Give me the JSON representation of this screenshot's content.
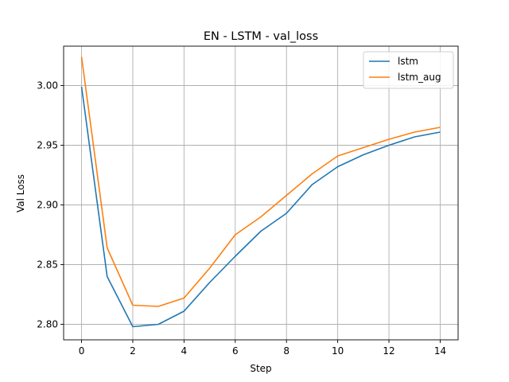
{
  "chart_data": {
    "type": "line",
    "title": "EN - LSTM - val_loss",
    "xlabel": "Step",
    "ylabel": "Val Loss",
    "x": [
      0,
      1,
      2,
      3,
      4,
      5,
      6,
      7,
      8,
      9,
      10,
      11,
      12,
      13,
      14
    ],
    "xlim": [
      -0.7,
      14.7
    ],
    "ylim": [
      2.787,
      3.033
    ],
    "xticks": [
      0,
      2,
      4,
      6,
      8,
      10,
      12,
      14
    ],
    "yticks": [
      2.8,
      2.85,
      2.9,
      2.95,
      3.0
    ],
    "xtick_labels": [
      "0",
      "2",
      "4",
      "6",
      "8",
      "10",
      "12",
      "14"
    ],
    "ytick_labels": [
      "2.80",
      "2.85",
      "2.90",
      "2.95",
      "3.00"
    ],
    "grid": true,
    "legend_position": "top-right",
    "series": [
      {
        "name": "lstm",
        "color": "#1f77b4",
        "values": [
          2.999,
          2.84,
          2.798,
          2.8,
          2.811,
          2.835,
          2.857,
          2.878,
          2.893,
          2.917,
          2.932,
          2.942,
          2.95,
          2.957,
          2.961
        ]
      },
      {
        "name": "lstm_aug",
        "color": "#ff7f0e",
        "values": [
          3.024,
          2.864,
          2.816,
          2.815,
          2.822,
          2.847,
          2.875,
          2.89,
          2.908,
          2.926,
          2.941,
          2.948,
          2.955,
          2.961,
          2.965
        ]
      }
    ]
  }
}
